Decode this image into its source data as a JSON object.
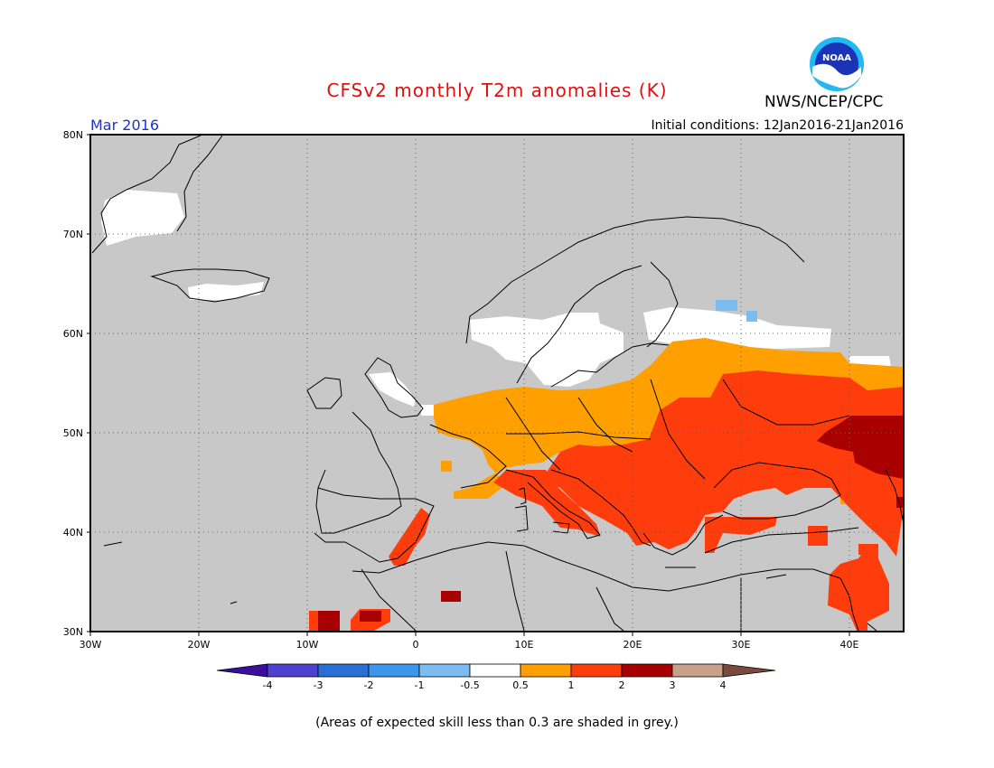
{
  "header": {
    "title": "CFSv2 monthly T2m anomalies (K)",
    "agency": "NWS/NCEP/CPC",
    "logo_text": "NOAA",
    "month": "Mar 2016",
    "initial_conditions": "Initial conditions: 12Jan2016-21Jan2016"
  },
  "map": {
    "lat_labels": [
      "80N",
      "70N",
      "60N",
      "50N",
      "40N",
      "30N"
    ],
    "lon_labels": [
      "30W",
      "20W",
      "10W",
      "0",
      "10E",
      "20E",
      "30E",
      "40E"
    ],
    "lon_range": [
      -30,
      45
    ],
    "lat_range": [
      30,
      80
    ]
  },
  "colorbar": {
    "labels": [
      "-4",
      "-3",
      "-2",
      "-1",
      "-0.5",
      "0.5",
      "1",
      "2",
      "3",
      "4"
    ],
    "colors": [
      "#3c0ea0",
      "#5040d0",
      "#2a6fd4",
      "#3c96ec",
      "#7dbcf0",
      "#ffffff",
      "#ffa000",
      "#ff3c0c",
      "#a80000",
      "#c8a08c",
      "#7a4a3c"
    ]
  },
  "colors": {
    "grey": "#c8c8c8",
    "white": "#ffffff",
    "orange": "#ffa000",
    "red": "#ff3c0c",
    "darkred": "#a80000",
    "lightblue": "#7dbcf0",
    "title": "#e01010",
    "month": "#1f2fd6"
  },
  "footnote": "(Areas of expected skill less than 0.3 are shaded in grey.)"
}
